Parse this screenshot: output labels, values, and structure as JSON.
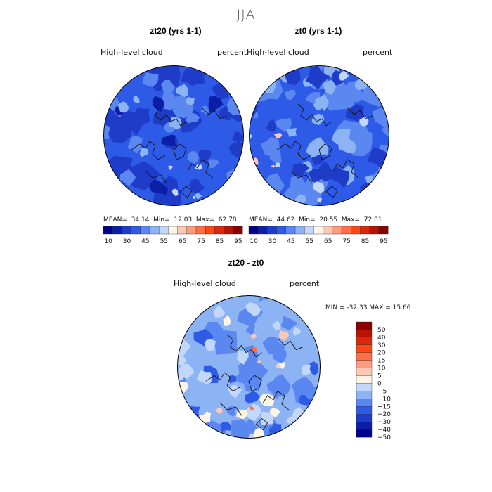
{
  "figure": {
    "season": "JJA"
  },
  "panels": [
    {
      "title": "zt20 (yrs 1-1)",
      "variable": "High-level cloud",
      "units": "percent",
      "stats": {
        "mean_label": "MEAN=",
        "mean": "34.14",
        "min_label": "Min=",
        "min": "12.03",
        "max_label": "Max=",
        "max": "62.78"
      },
      "colorbar_ticks": [
        "10",
        "30",
        "45",
        "55",
        "65",
        "75",
        "85",
        "95"
      ]
    },
    {
      "title": "zt0 (yrs 1-1)",
      "variable": "High-level cloud",
      "units": "percent",
      "stats": {
        "mean_label": "MEAN=",
        "mean": "44.62",
        "min_label": "Min=",
        "min": "20.55",
        "max_label": "Max=",
        "max": "72.01"
      },
      "colorbar_ticks": [
        "10",
        "30",
        "45",
        "55",
        "65",
        "75",
        "85",
        "95"
      ]
    },
    {
      "title": "zt20 - zt0",
      "variable": "High-level cloud",
      "units": "percent",
      "minmax": "MIN =  -32.33  MAX =   15.66",
      "colorbar_ticks": [
        "50",
        "40",
        "30",
        "20",
        "15",
        "10",
        "5",
        "0",
        "−5",
        "−10",
        "−15",
        "−20",
        "−30",
        "−40",
        "−50"
      ]
    }
  ],
  "colors": {
    "abs_levels": [
      "#00008c",
      "#0a1ea8",
      "#1e3cc8",
      "#2d5ae6",
      "#5a87f0",
      "#8cb4f5",
      "#c3d7fa",
      "#fff5e6",
      "#ffc8b4",
      "#ff9b7d",
      "#ff6e46",
      "#ff4614",
      "#dc280a",
      "#b41400",
      "#8c0000"
    ],
    "diff_levels": [
      "#00008c",
      "#0a1ea8",
      "#1e3cc8",
      "#2d5ae6",
      "#5a87f0",
      "#8cb4f5",
      "#c3d7fa",
      "#fff5e6",
      "#ffc8b4",
      "#ff9b7d",
      "#ff6e46",
      "#ff4614",
      "#dc280a",
      "#b41400",
      "#8c0000"
    ]
  }
}
